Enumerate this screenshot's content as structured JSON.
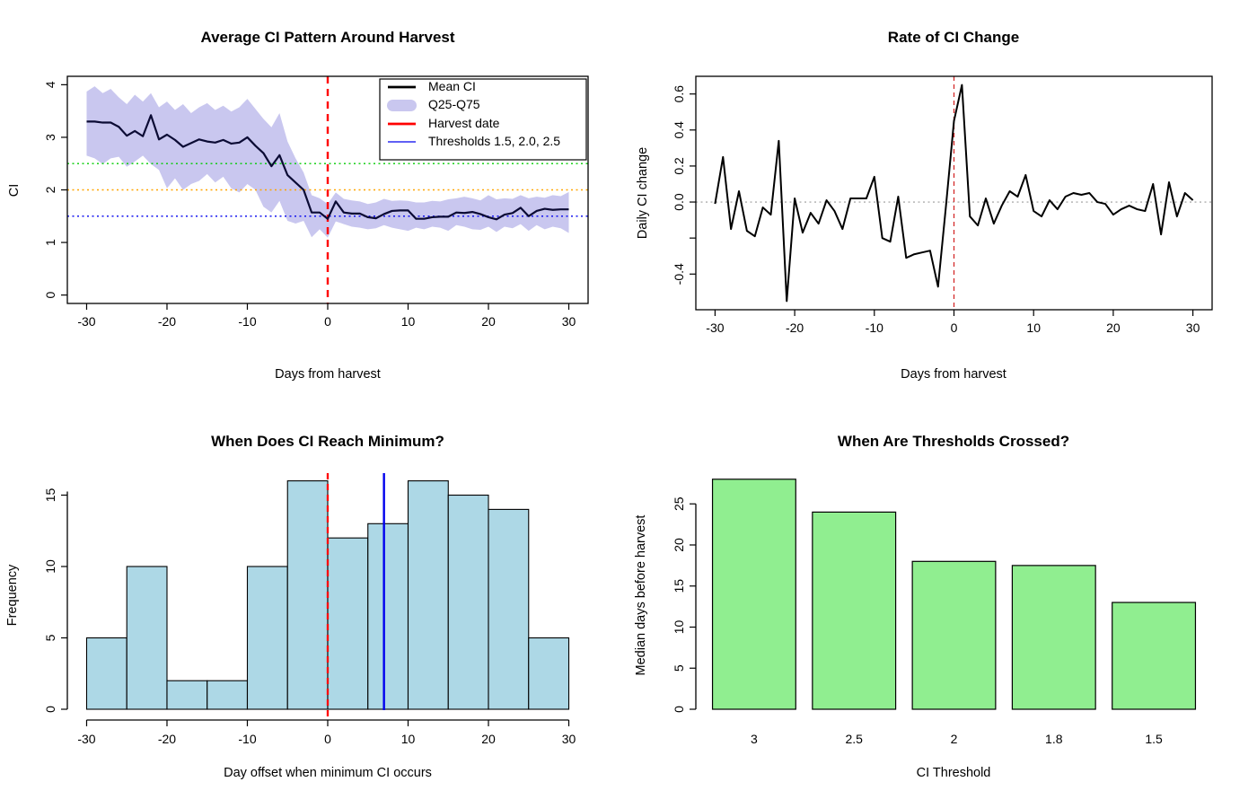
{
  "page": {
    "background": "#ffffff"
  },
  "chart_data": [
    {
      "type": "line",
      "title": "Average CI Pattern Around Harvest",
      "xlabel": "Days from harvest",
      "ylabel": "CI",
      "xlim": [
        -30,
        30
      ],
      "ylim": [
        0,
        4
      ],
      "grid": false,
      "xtick_values": [
        -30,
        -20,
        -10,
        0,
        10,
        20,
        30
      ],
      "xticks": [
        "-30",
        "-20",
        "-10",
        "0",
        "10",
        "20",
        "30"
      ],
      "ytick_values": [
        0,
        1,
        2,
        3,
        4
      ],
      "yticks": [
        "0",
        "1",
        "2",
        "3",
        "4"
      ],
      "x_start": -30,
      "series": [
        {
          "name": "Mean CI",
          "values": [
            3.3,
            3.3,
            3.28,
            3.28,
            3.2,
            3.03,
            3.12,
            3.02,
            3.42,
            2.96,
            3.05,
            2.95,
            2.82,
            2.89,
            2.96,
            2.92,
            2.9,
            2.95,
            2.88,
            2.9,
            3.0,
            2.84,
            2.7,
            2.45,
            2.66,
            2.28,
            2.14,
            2.0,
            1.57,
            1.57,
            1.45,
            1.78,
            1.57,
            1.55,
            1.55,
            1.48,
            1.46,
            1.54,
            1.6,
            1.61,
            1.61,
            1.45,
            1.45,
            1.48,
            1.49,
            1.49,
            1.57,
            1.56,
            1.58,
            1.54,
            1.48,
            1.44,
            1.53,
            1.56,
            1.66,
            1.5,
            1.6,
            1.64,
            1.62,
            1.63,
            1.63
          ]
        },
        {
          "name": "Q75",
          "values": [
            3.87,
            3.97,
            3.84,
            3.92,
            3.76,
            3.63,
            3.81,
            3.68,
            3.84,
            3.57,
            3.68,
            3.52,
            3.63,
            3.46,
            3.57,
            3.65,
            3.52,
            3.6,
            3.49,
            3.57,
            3.73,
            3.54,
            3.35,
            3.19,
            3.46,
            2.92,
            2.6,
            2.33,
            1.9,
            1.84,
            1.73,
            1.95,
            1.83,
            1.8,
            1.78,
            1.73,
            1.76,
            1.83,
            1.79,
            1.8,
            1.79,
            1.76,
            1.76,
            1.79,
            1.78,
            1.82,
            1.84,
            1.87,
            1.84,
            1.8,
            1.9,
            1.82,
            1.84,
            1.83,
            1.9,
            1.84,
            1.87,
            1.85,
            1.9,
            1.88,
            1.96
          ]
        },
        {
          "name": "Q25",
          "values": [
            2.65,
            2.6,
            2.49,
            2.6,
            2.63,
            2.44,
            2.54,
            2.65,
            2.49,
            2.38,
            2.03,
            2.22,
            2.0,
            2.11,
            2.17,
            2.3,
            2.14,
            2.25,
            2.03,
            1.95,
            2.11,
            2.0,
            1.68,
            1.57,
            1.79,
            1.41,
            1.36,
            1.41,
            1.1,
            1.25,
            1.09,
            1.4,
            1.35,
            1.3,
            1.28,
            1.25,
            1.27,
            1.33,
            1.28,
            1.25,
            1.22,
            1.28,
            1.25,
            1.3,
            1.28,
            1.22,
            1.33,
            1.3,
            1.25,
            1.24,
            1.3,
            1.2,
            1.3,
            1.27,
            1.35,
            1.22,
            1.33,
            1.25,
            1.3,
            1.27,
            1.18
          ]
        }
      ],
      "thresholds": [
        {
          "value": 2.5,
          "color": "#00cc00"
        },
        {
          "value": 2.0,
          "color": "#ffa500"
        },
        {
          "value": 1.5,
          "color": "#0000ee"
        }
      ],
      "harvest_x": 0,
      "legend": {
        "position": "top-right",
        "items": [
          {
            "label": "Mean CI",
            "swatch": "line-thick",
            "color": "#000000"
          },
          {
            "label": "Q25-Q75",
            "swatch": "band",
            "color": "#c9c7ef"
          },
          {
            "label": "Harvest date",
            "swatch": "line-thick",
            "color": "#ff0000"
          },
          {
            "label": "Thresholds 1.5, 2.0, 2.5",
            "swatch": "line-thin",
            "color": "#0000ee"
          }
        ]
      },
      "colors": {
        "mean": "#0b0b34",
        "ribbon": "#c9c7ef",
        "harvest": "#ff0000",
        "axis": "#000000"
      }
    },
    {
      "type": "line",
      "title": "Rate of CI Change",
      "xlabel": "Days from harvest",
      "ylabel": "Daily CI change",
      "xlim": [
        -30,
        30
      ],
      "ylim": [
        -0.55,
        0.65
      ],
      "grid": false,
      "xtick_values": [
        -30,
        -20,
        -10,
        0,
        10,
        20,
        30
      ],
      "xticks": [
        "-30",
        "-20",
        "-10",
        "0",
        "10",
        "20",
        "30"
      ],
      "ytick_values": [
        -0.4,
        -0.2,
        0,
        0.2,
        0.4,
        0.6
      ],
      "yticks": [
        "-0.4",
        "",
        "0.0",
        "0.2",
        "0.4",
        "0.6"
      ],
      "x_start": -30,
      "values": [
        -0.01,
        0.25,
        -0.15,
        0.06,
        -0.16,
        -0.19,
        -0.03,
        -0.07,
        0.34,
        -0.55,
        0.02,
        -0.17,
        -0.06,
        -0.12,
        0.01,
        -0.05,
        -0.15,
        0.02,
        0.02,
        0.02,
        0.14,
        -0.2,
        -0.22,
        0.03,
        -0.31,
        -0.29,
        -0.28,
        -0.27,
        -0.47,
        -0.02,
        0.45,
        0.65,
        -0.08,
        -0.13,
        0.02,
        -0.12,
        -0.02,
        0.06,
        0.03,
        0.15,
        -0.05,
        -0.08,
        0.01,
        -0.04,
        0.03,
        0.05,
        0.04,
        0.05,
        0.0,
        -0.01,
        -0.07,
        -0.04,
        -0.02,
        -0.04,
        -0.05,
        0.1,
        -0.18,
        0.11,
        -0.08,
        0.05,
        0.01
      ],
      "harvest_x": 0,
      "zero_line_value": 0,
      "colors": {
        "line": "#000000",
        "harvest": "#d42a2a",
        "zero": "#9a9a9a",
        "axis": "#000000"
      }
    },
    {
      "type": "histogram",
      "title": "When Does CI Reach Minimum?",
      "xlabel": "Day offset when minimum CI occurs",
      "ylabel": "Frequency",
      "bin_start": -30,
      "bin_width": 5,
      "counts": [
        5,
        10,
        2,
        2,
        10,
        16,
        12,
        13,
        16,
        15,
        14,
        5
      ],
      "xtick_values": [
        -30,
        -20,
        -10,
        0,
        10,
        20,
        30
      ],
      "xticks": [
        "-30",
        "-20",
        "-10",
        "0",
        "10",
        "20",
        "30"
      ],
      "ytick_values": [
        0,
        5,
        10,
        15
      ],
      "yticks": [
        "0",
        "5",
        "10",
        "15"
      ],
      "harvest_x": 0,
      "median_x": 7,
      "colors": {
        "fill": "#add8e6",
        "border": "#000000",
        "harvest": "#ff0000",
        "median": "#0000ee",
        "axis": "#000000"
      }
    },
    {
      "type": "bar",
      "title": "When Are Thresholds Crossed?",
      "xlabel": "CI Threshold",
      "ylabel": "Median days before harvest",
      "categories": [
        "3",
        "2.5",
        "2",
        "1.8",
        "1.5"
      ],
      "values": [
        28,
        24,
        18,
        17.5,
        13
      ],
      "ytick_values": [
        0,
        5,
        10,
        15,
        20,
        25
      ],
      "yticks": [
        "0",
        "5",
        "10",
        "15",
        "20",
        "25"
      ],
      "ylim": [
        0,
        28
      ],
      "colors": {
        "fill": "#90ee90",
        "border": "#000000",
        "axis": "#000000"
      }
    }
  ]
}
